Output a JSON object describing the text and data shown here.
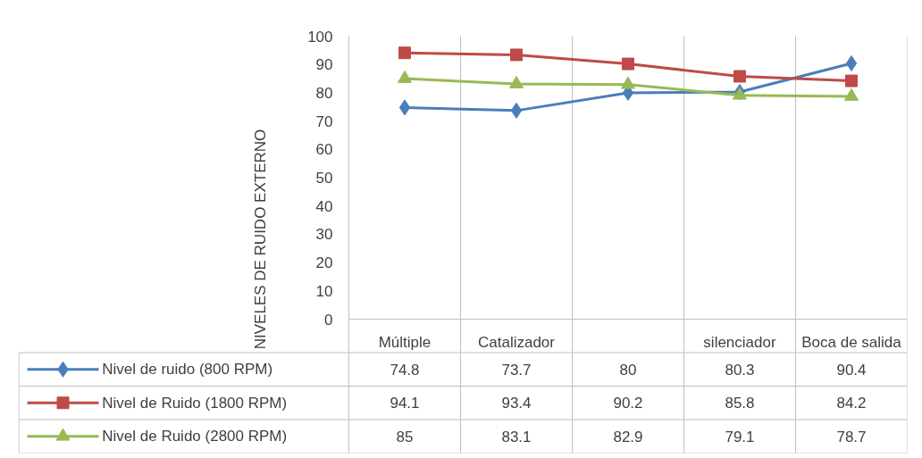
{
  "chart_data": {
    "type": "line",
    "categories": [
      "Múltiple",
      "Catalizador",
      null,
      "silenciador",
      "Boca de salida"
    ],
    "series": [
      {
        "name": "Nivel de ruido (800 RPM)",
        "color": "#4a7ebb",
        "marker": "diamond",
        "values": [
          74.8,
          73.7,
          80,
          80.3,
          90.4
        ]
      },
      {
        "name": "Nivel de Ruido (1800 RPM)",
        "color": "#be4b48",
        "marker": "square",
        "values": [
          94.1,
          93.4,
          90.2,
          85.8,
          84.2
        ]
      },
      {
        "name": "Nivel de Ruido (2800 RPM)",
        "color": "#98b954",
        "marker": "triangle",
        "values": [
          85,
          83.1,
          82.9,
          79.1,
          78.7
        ]
      }
    ],
    "ylabel": "NIVELES DE RUIDO EXTERNO",
    "ylim": [
      0,
      100
    ],
    "yticks": [
      0,
      10,
      20,
      30,
      40,
      50,
      60,
      70,
      80,
      90,
      100
    ],
    "grid": "x",
    "legend": "bottom",
    "data_labels": true
  }
}
